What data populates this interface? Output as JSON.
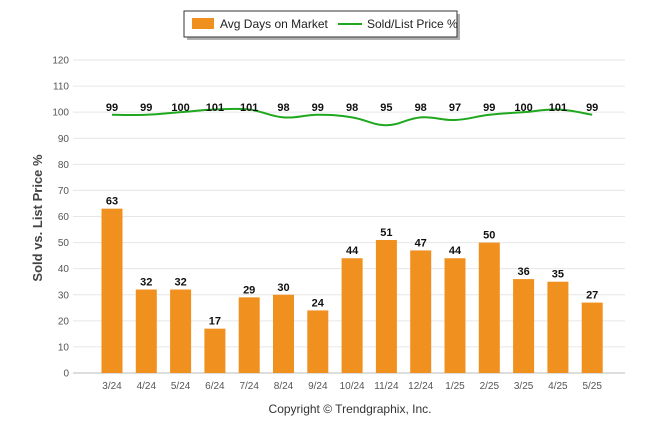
{
  "chart_data": {
    "type": "bar",
    "categories": [
      "3/24",
      "4/24",
      "5/24",
      "6/24",
      "7/24",
      "8/24",
      "9/24",
      "10/24",
      "11/24",
      "12/24",
      "1/25",
      "2/25",
      "3/25",
      "4/25",
      "5/25"
    ],
    "series": [
      {
        "name": "Avg Days on Market",
        "type": "bar",
        "color": "#f0901e",
        "values": [
          63,
          32,
          32,
          17,
          29,
          30,
          24,
          44,
          51,
          47,
          44,
          50,
          36,
          35,
          27
        ]
      },
      {
        "name": "Sold/List Price %",
        "type": "line",
        "color": "#1fa81f",
        "values": [
          99,
          99,
          100,
          101,
          101,
          98,
          99,
          98,
          95,
          98,
          97,
          99,
          100,
          101,
          99
        ]
      }
    ],
    "ylabel": "Sold vs. List Price %",
    "ylim": [
      0,
      120
    ],
    "yticks": [
      0,
      10,
      20,
      30,
      40,
      50,
      60,
      70,
      80,
      90,
      100,
      110,
      120
    ],
    "grid": true,
    "legend_position": "top-center"
  },
  "footer": {
    "copyright": "Copyright © Trendgraphix, Inc."
  }
}
